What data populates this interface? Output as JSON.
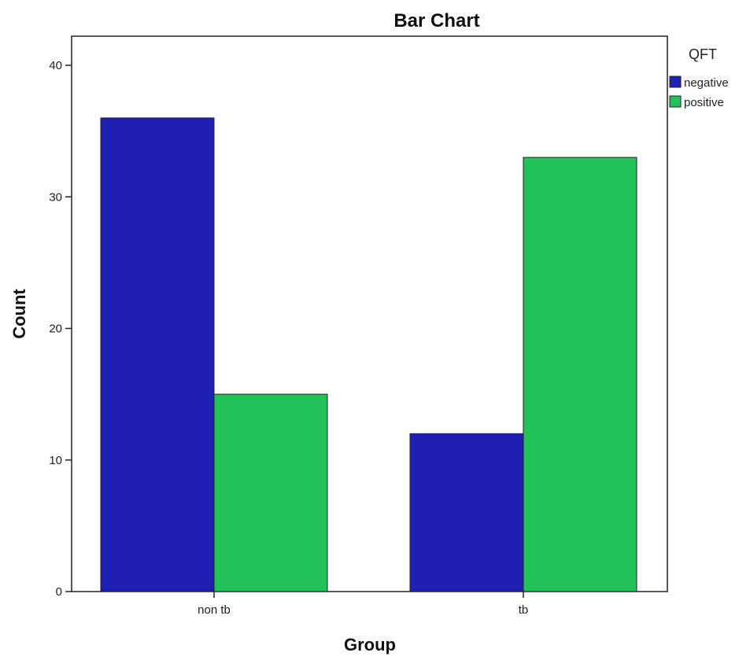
{
  "chart_data": {
    "type": "bar",
    "title": "Bar Chart",
    "xlabel": "Group",
    "ylabel": "Count",
    "categories": [
      "non tb",
      "tb"
    ],
    "ylim": [
      0,
      42
    ],
    "yticks": [
      0,
      10,
      20,
      30,
      40
    ],
    "legend": {
      "title": "QFT",
      "placement": "right"
    },
    "series": [
      {
        "name": "negative",
        "color": "#1f1fb4",
        "values": [
          36,
          12
        ]
      },
      {
        "name": "positive",
        "color": "#22c15a",
        "values": [
          15,
          33
        ]
      }
    ]
  }
}
